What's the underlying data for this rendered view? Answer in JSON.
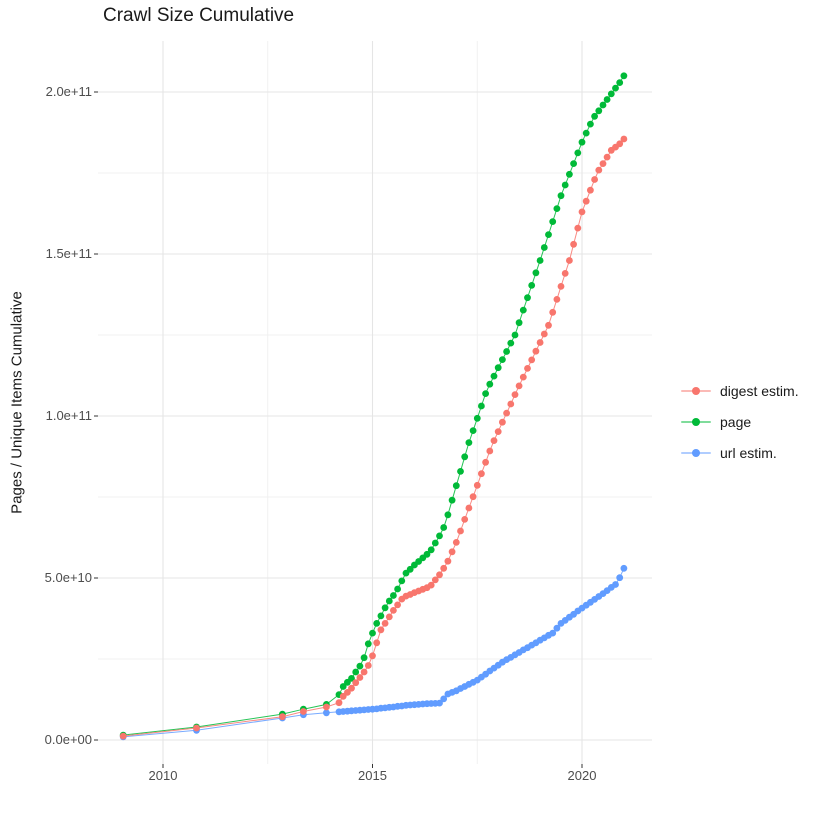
{
  "chart_data": {
    "type": "scatter",
    "subtype": "points connected by thin same-color lines (cumulative curves)",
    "title": "Crawl Size Cumulative",
    "xlabel": "",
    "ylabel": "Pages / Unique Items Cumulative",
    "grid": true,
    "legend_position": "right",
    "y_unit_note": "point y-values below are in billions (1e9); axis labels use scientific notation",
    "x_ticks": [
      {
        "value": 2010,
        "label": "2010"
      },
      {
        "value": 2015,
        "label": "2015"
      },
      {
        "value": 2020,
        "label": "2020"
      }
    ],
    "x_minor_gridlines": [
      2012.5,
      2017.5
    ],
    "y_ticks": [
      {
        "value": 0,
        "label": "0.0e+00"
      },
      {
        "value": 50,
        "label": "5.0e+10"
      },
      {
        "value": 100,
        "label": "1.0e+11"
      },
      {
        "value": 150,
        "label": "1.5e+11"
      },
      {
        "value": 200,
        "label": "2.0e+11"
      }
    ],
    "y_minor_gridlines": [
      25,
      75,
      125,
      175
    ],
    "x_range_shown": [
      2008.45,
      2021.67
    ],
    "y_range_shown": [
      -10,
      223
    ],
    "series": [
      {
        "name": "digest estim.",
        "color": "#F8766D",
        "points": [
          [
            2009.05,
            1.2
          ],
          [
            2010.8,
            3.7
          ],
          [
            2012.85,
            7.2
          ],
          [
            2013.35,
            8.8
          ],
          [
            2013.9,
            10.2
          ],
          [
            2014.2,
            11.5
          ],
          [
            2014.3,
            13.5
          ],
          [
            2014.4,
            14.7
          ],
          [
            2014.5,
            16.0
          ],
          [
            2014.6,
            17.7
          ],
          [
            2014.7,
            19.3
          ],
          [
            2014.8,
            21.0
          ],
          [
            2014.9,
            23.0
          ],
          [
            2015.0,
            26.0
          ],
          [
            2015.1,
            30.0
          ],
          [
            2015.2,
            34.0
          ],
          [
            2015.3,
            36.0
          ],
          [
            2015.4,
            38.0
          ],
          [
            2015.5,
            40.0
          ],
          [
            2015.6,
            41.7
          ],
          [
            2015.7,
            43.5
          ],
          [
            2015.8,
            44.4
          ],
          [
            2015.9,
            44.9
          ],
          [
            2016.0,
            45.5
          ],
          [
            2016.1,
            46.0
          ],
          [
            2016.2,
            46.5
          ],
          [
            2016.3,
            47.0
          ],
          [
            2016.4,
            47.8
          ],
          [
            2016.5,
            49.4
          ],
          [
            2016.6,
            51.0
          ],
          [
            2016.7,
            53.0
          ],
          [
            2016.8,
            55.2
          ],
          [
            2016.9,
            58.1
          ],
          [
            2017.0,
            61.0
          ],
          [
            2017.1,
            64.5
          ],
          [
            2017.2,
            68.1
          ],
          [
            2017.3,
            71.6
          ],
          [
            2017.4,
            75.1
          ],
          [
            2017.5,
            78.6
          ],
          [
            2017.6,
            82.2
          ],
          [
            2017.7,
            85.7
          ],
          [
            2017.8,
            89.2
          ],
          [
            2017.9,
            92.4
          ],
          [
            2018.0,
            95.2
          ],
          [
            2018.1,
            98.1
          ],
          [
            2018.2,
            100.9
          ],
          [
            2018.3,
            103.7
          ],
          [
            2018.4,
            106.6
          ],
          [
            2018.5,
            109.3
          ],
          [
            2018.6,
            112.0
          ],
          [
            2018.7,
            114.7
          ],
          [
            2018.8,
            117.3
          ],
          [
            2018.9,
            120.0
          ],
          [
            2019.0,
            122.7
          ],
          [
            2019.1,
            125.3
          ],
          [
            2019.2,
            128.0
          ],
          [
            2019.3,
            132.0
          ],
          [
            2019.4,
            136.0
          ],
          [
            2019.5,
            140.0
          ],
          [
            2019.6,
            144.0
          ],
          [
            2019.7,
            148.0
          ],
          [
            2019.8,
            153.0
          ],
          [
            2019.9,
            158.0
          ],
          [
            2020.0,
            163.0
          ],
          [
            2020.1,
            166.3
          ],
          [
            2020.2,
            169.7
          ],
          [
            2020.3,
            173.0
          ],
          [
            2020.4,
            175.9
          ],
          [
            2020.5,
            177.9
          ],
          [
            2020.6,
            179.9
          ],
          [
            2020.7,
            182.0
          ],
          [
            2020.8,
            183.0
          ],
          [
            2020.9,
            184.0
          ],
          [
            2021.0,
            185.5
          ]
        ]
      },
      {
        "name": "page",
        "color": "#00BA38",
        "points": [
          [
            2009.05,
            1.5
          ],
          [
            2010.8,
            4.0
          ],
          [
            2012.85,
            8.0
          ],
          [
            2013.35,
            9.5
          ],
          [
            2013.9,
            11.0
          ],
          [
            2014.2,
            14.0
          ],
          [
            2014.3,
            16.5
          ],
          [
            2014.4,
            17.8
          ],
          [
            2014.5,
            19.0
          ],
          [
            2014.6,
            21.0
          ],
          [
            2014.7,
            22.8
          ],
          [
            2014.8,
            25.4
          ],
          [
            2014.9,
            29.7
          ],
          [
            2015.0,
            33.0
          ],
          [
            2015.1,
            36.0
          ],
          [
            2015.2,
            38.3
          ],
          [
            2015.3,
            40.8
          ],
          [
            2015.4,
            42.9
          ],
          [
            2015.5,
            44.6
          ],
          [
            2015.6,
            46.6
          ],
          [
            2015.7,
            49.1
          ],
          [
            2015.8,
            51.5
          ],
          [
            2015.9,
            52.7
          ],
          [
            2016.0,
            54.0
          ],
          [
            2016.1,
            55.1
          ],
          [
            2016.2,
            56.2
          ],
          [
            2016.3,
            57.3
          ],
          [
            2016.4,
            58.7
          ],
          [
            2016.5,
            60.8
          ],
          [
            2016.6,
            63.0
          ],
          [
            2016.7,
            65.6
          ],
          [
            2016.8,
            69.5
          ],
          [
            2016.9,
            74.0
          ],
          [
            2017.0,
            78.5
          ],
          [
            2017.1,
            82.9
          ],
          [
            2017.2,
            87.4
          ],
          [
            2017.3,
            91.8
          ],
          [
            2017.4,
            95.5
          ],
          [
            2017.5,
            99.3
          ],
          [
            2017.6,
            103.1
          ],
          [
            2017.7,
            106.9
          ],
          [
            2017.8,
            109.8
          ],
          [
            2017.9,
            112.3
          ],
          [
            2018.0,
            114.9
          ],
          [
            2018.1,
            117.4
          ],
          [
            2018.2,
            119.9
          ],
          [
            2018.3,
            122.5
          ],
          [
            2018.4,
            125.0
          ],
          [
            2018.5,
            128.8
          ],
          [
            2018.6,
            132.7
          ],
          [
            2018.7,
            136.5
          ],
          [
            2018.8,
            140.3
          ],
          [
            2018.9,
            144.2
          ],
          [
            2019.0,
            148.0
          ],
          [
            2019.1,
            152.0
          ],
          [
            2019.2,
            156.0
          ],
          [
            2019.3,
            160.0
          ],
          [
            2019.4,
            164.0
          ],
          [
            2019.5,
            168.0
          ],
          [
            2019.6,
            171.3
          ],
          [
            2019.7,
            174.6
          ],
          [
            2019.8,
            177.9
          ],
          [
            2019.9,
            181.2
          ],
          [
            2020.0,
            184.5
          ],
          [
            2020.1,
            187.3
          ],
          [
            2020.2,
            190.1
          ],
          [
            2020.3,
            192.5
          ],
          [
            2020.4,
            194.2
          ],
          [
            2020.5,
            196.0
          ],
          [
            2020.6,
            197.7
          ],
          [
            2020.7,
            199.4
          ],
          [
            2020.8,
            201.2
          ],
          [
            2020.9,
            202.9
          ],
          [
            2021.0,
            205.0
          ]
        ]
      },
      {
        "name": "url estim.",
        "color": "#619CFF",
        "points": [
          [
            2009.05,
            1.0
          ],
          [
            2010.8,
            3.0
          ],
          [
            2012.85,
            6.8
          ],
          [
            2013.35,
            7.8
          ],
          [
            2013.9,
            8.4
          ],
          [
            2014.2,
            8.7
          ],
          [
            2014.3,
            8.8
          ],
          [
            2014.4,
            8.9
          ],
          [
            2014.5,
            9.0
          ],
          [
            2014.6,
            9.1
          ],
          [
            2014.7,
            9.2
          ],
          [
            2014.8,
            9.3
          ],
          [
            2014.9,
            9.4
          ],
          [
            2015.0,
            9.5
          ],
          [
            2015.1,
            9.6
          ],
          [
            2015.2,
            9.8
          ],
          [
            2015.3,
            9.9
          ],
          [
            2015.4,
            10.1
          ],
          [
            2015.5,
            10.2
          ],
          [
            2015.6,
            10.4
          ],
          [
            2015.7,
            10.5
          ],
          [
            2015.8,
            10.7
          ],
          [
            2015.9,
            10.8
          ],
          [
            2016.0,
            10.9
          ],
          [
            2016.1,
            11.0
          ],
          [
            2016.2,
            11.1
          ],
          [
            2016.3,
            11.2
          ],
          [
            2016.4,
            11.25
          ],
          [
            2016.5,
            11.3
          ],
          [
            2016.6,
            11.4
          ],
          [
            2016.7,
            12.7
          ],
          [
            2016.8,
            14.2
          ],
          [
            2016.9,
            14.7
          ],
          [
            2017.0,
            15.2
          ],
          [
            2017.1,
            15.9
          ],
          [
            2017.2,
            16.5
          ],
          [
            2017.3,
            17.2
          ],
          [
            2017.4,
            17.8
          ],
          [
            2017.5,
            18.5
          ],
          [
            2017.6,
            19.4
          ],
          [
            2017.7,
            20.3
          ],
          [
            2017.8,
            21.3
          ],
          [
            2017.9,
            22.2
          ],
          [
            2018.0,
            23.1
          ],
          [
            2018.1,
            24.0
          ],
          [
            2018.2,
            24.8
          ],
          [
            2018.3,
            25.5
          ],
          [
            2018.4,
            26.3
          ],
          [
            2018.5,
            27.0
          ],
          [
            2018.6,
            27.8
          ],
          [
            2018.7,
            28.5
          ],
          [
            2018.8,
            29.3
          ],
          [
            2018.9,
            30.0
          ],
          [
            2019.0,
            30.8
          ],
          [
            2019.1,
            31.5
          ],
          [
            2019.2,
            32.3
          ],
          [
            2019.3,
            33.0
          ],
          [
            2019.4,
            34.5
          ],
          [
            2019.5,
            36.0
          ],
          [
            2019.6,
            36.9
          ],
          [
            2019.7,
            37.9
          ],
          [
            2019.8,
            38.8
          ],
          [
            2019.9,
            39.8
          ],
          [
            2020.0,
            40.7
          ],
          [
            2020.1,
            41.6
          ],
          [
            2020.2,
            42.5
          ],
          [
            2020.3,
            43.4
          ],
          [
            2020.4,
            44.3
          ],
          [
            2020.5,
            45.2
          ],
          [
            2020.6,
            46.1
          ],
          [
            2020.7,
            47.1
          ],
          [
            2020.8,
            48.0
          ],
          [
            2020.9,
            50.1
          ],
          [
            2021.0,
            53.0
          ]
        ]
      }
    ]
  }
}
